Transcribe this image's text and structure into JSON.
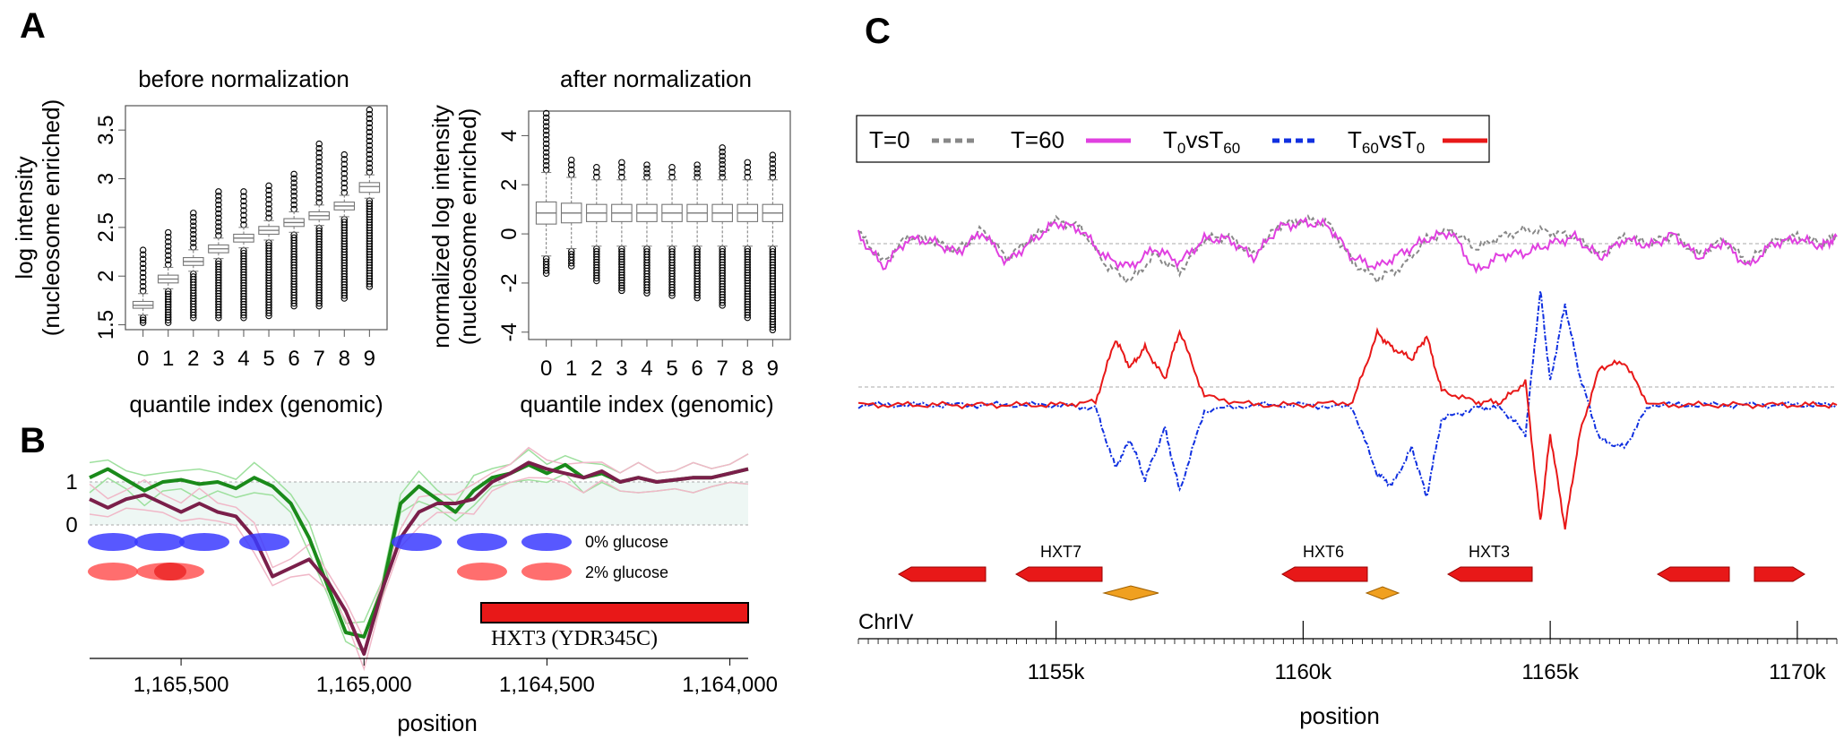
{
  "panels": {
    "a": "A",
    "b": "B",
    "c": "C"
  },
  "chart_data": [
    {
      "type": "box",
      "title": "before normalization",
      "xlabel": "quantile index (genomic)",
      "ylabel": [
        "log intensity",
        "(nucleosome enriched)"
      ],
      "categories": [
        "0",
        "1",
        "2",
        "3",
        "4",
        "5",
        "6",
        "7",
        "8",
        "9"
      ],
      "ylim": [
        1.45,
        3.75
      ],
      "yticks": [
        "1.5",
        "2",
        "2.5",
        "3",
        "3.5"
      ],
      "ytick_values": [
        1.5,
        2,
        2.5,
        3,
        3.5
      ],
      "medians": [
        1.7,
        1.97,
        2.15,
        2.28,
        2.39,
        2.47,
        2.55,
        2.62,
        2.72,
        2.92
      ],
      "q1": [
        1.67,
        1.93,
        2.11,
        2.24,
        2.35,
        2.43,
        2.51,
        2.58,
        2.68,
        2.86
      ],
      "q3": [
        1.74,
        2.01,
        2.19,
        2.32,
        2.43,
        2.51,
        2.59,
        2.66,
        2.76,
        2.96
      ],
      "whisker_low": [
        1.6,
        1.87,
        2.05,
        2.18,
        2.29,
        2.37,
        2.45,
        2.52,
        2.61,
        2.8
      ],
      "whisker_high": [
        1.82,
        2.09,
        2.27,
        2.39,
        2.5,
        2.57,
        2.66,
        2.73,
        2.83,
        3.04
      ],
      "outlier_low": [
        1.55,
        1.55,
        1.6,
        1.6,
        1.6,
        1.62,
        1.72,
        1.72,
        1.8,
        1.92
      ],
      "outlier_high": [
        2.24,
        2.42,
        2.62,
        2.84,
        2.84,
        2.9,
        3.02,
        3.33,
        3.22,
        3.68
      ]
    },
    {
      "type": "box",
      "title": "after normalization",
      "xlabel": "quantile index (genomic)",
      "ylabel": [
        "normalized log intensity",
        "(nucleosome enriched)"
      ],
      "categories": [
        "0",
        "1",
        "2",
        "3",
        "4",
        "5",
        "6",
        "7",
        "8",
        "9"
      ],
      "ylim": [
        -4.3,
        5.0
      ],
      "yticks": [
        "-4",
        "-2",
        "0",
        "2",
        "4"
      ],
      "ytick_values": [
        -4,
        -2,
        0,
        2,
        4
      ],
      "medians": [
        0.85,
        0.85,
        0.85,
        0.85,
        0.85,
        0.85,
        0.85,
        0.85,
        0.85,
        0.85
      ],
      "q1": [
        0.4,
        0.45,
        0.5,
        0.5,
        0.5,
        0.5,
        0.5,
        0.5,
        0.5,
        0.5
      ],
      "q3": [
        1.3,
        1.25,
        1.2,
        1.2,
        1.2,
        1.2,
        1.2,
        1.2,
        1.2,
        1.2
      ],
      "whisker_low": [
        -0.9,
        -0.6,
        -0.5,
        -0.5,
        -0.5,
        -0.5,
        -0.5,
        -0.5,
        -0.5,
        -0.5
      ],
      "whisker_high": [
        2.5,
        2.3,
        2.2,
        2.2,
        2.2,
        2.2,
        2.2,
        2.2,
        2.2,
        2.2
      ],
      "outlier_low": [
        -1.5,
        -1.2,
        -1.8,
        -2.2,
        -2.3,
        -2.4,
        -2.5,
        -2.8,
        -3.3,
        -3.8
      ],
      "outlier_high": [
        4.8,
        2.9,
        2.6,
        2.8,
        2.7,
        2.6,
        2.7,
        3.4,
        2.8,
        3.1
      ]
    },
    {
      "type": "line",
      "xlabel": "position",
      "xticks": [
        "1,165,500",
        "1,165,000",
        "1,164,500",
        "1,164,000"
      ],
      "xtick_values": [
        1165500,
        1165000,
        1164500,
        1164000
      ],
      "xlim": [
        1165750,
        1163950
      ],
      "yticks": [
        "1",
        "0"
      ],
      "ytick_values": [
        1,
        0
      ],
      "ylim": [
        -3.2,
        1.65
      ],
      "series": [
        {
          "color": "#1a8a1a",
          "x": [
            1165750,
            1165700,
            1165650,
            1165600,
            1165550,
            1165500,
            1165450,
            1165400,
            1165350,
            1165300,
            1165250,
            1165200,
            1165150,
            1165100,
            1165050,
            1165000,
            1164950,
            1164900,
            1164850,
            1164800,
            1164750,
            1164700,
            1164650,
            1164600,
            1164550,
            1164500,
            1164450,
            1164400,
            1164350,
            1164300,
            1164250,
            1164200,
            1164150,
            1164100,
            1164050,
            1164000,
            1163950
          ],
          "y": [
            1.1,
            1.3,
            1.05,
            0.8,
            1.0,
            1.05,
            0.95,
            1.0,
            0.85,
            1.1,
            0.9,
            0.5,
            -0.3,
            -1.4,
            -2.5,
            -2.6,
            -1.5,
            0.5,
            0.9,
            0.6,
            0.3,
            0.8,
            1.1,
            1.2,
            1.4,
            1.2,
            1.4,
            1.1,
            1.2,
            1.0,
            1.1,
            1.0,
            1.05,
            1.1,
            1.1,
            1.2,
            1.3
          ]
        },
        {
          "color": "#7a1f4a",
          "x": [
            1165750,
            1165700,
            1165650,
            1165600,
            1165550,
            1165500,
            1165450,
            1165400,
            1165350,
            1165300,
            1165250,
            1165200,
            1165150,
            1165100,
            1165050,
            1165000,
            1164950,
            1164900,
            1164850,
            1164800,
            1164750,
            1164700,
            1164650,
            1164600,
            1164550,
            1164500,
            1164450,
            1164400,
            1164350,
            1164300,
            1164250,
            1164200,
            1164150,
            1164100,
            1164050,
            1164000,
            1163950
          ],
          "y": [
            0.6,
            0.4,
            0.6,
            0.7,
            0.5,
            0.3,
            0.5,
            0.3,
            0.2,
            -0.3,
            -1.2,
            -1.0,
            -0.8,
            -1.3,
            -2.0,
            -3.0,
            -1.5,
            -0.3,
            0.3,
            0.5,
            0.5,
            0.6,
            1.0,
            1.2,
            1.45,
            1.3,
            1.2,
            1.1,
            1.25,
            1.0,
            1.1,
            1.0,
            1.05,
            1.1,
            1.1,
            1.2,
            1.3
          ]
        }
      ],
      "legend": [
        "0% glucose",
        "2% glucose"
      ],
      "gene_label": "HXT3 (YDR345C)"
    },
    {
      "type": "line",
      "xlabel": "position",
      "xticks": [
        "1155k",
        "1160k",
        "1165k",
        "1170k"
      ],
      "xtick_values": [
        1155000,
        1160000,
        1165000,
        1170000
      ],
      "xlim": [
        1151000,
        1170800
      ],
      "legend": [
        "T=0",
        "T=60",
        "T0vsT60",
        "T60vsT0"
      ],
      "chromosome": "ChrIV",
      "genes": [
        "HXT7",
        "HXT6",
        "HXT3"
      ],
      "series": [
        {
          "name": "T=0",
          "color": "#888888",
          "x": [
            1151000,
            1151500,
            1152000,
            1152500,
            1153000,
            1153500,
            1154000,
            1154500,
            1155000,
            1155500,
            1156000,
            1156500,
            1157000,
            1157500,
            1158000,
            1158500,
            1159000,
            1159500,
            1160000,
            1160500,
            1161000,
            1161500,
            1162000,
            1162500,
            1163000,
            1163500,
            1164000,
            1164500,
            1165000,
            1165500,
            1166000,
            1166500,
            1167000,
            1167500,
            1168000,
            1168500,
            1169000,
            1169500,
            1170000,
            1170500,
            1170800
          ],
          "y": [
            0.5,
            -0.8,
            0.3,
            0.1,
            -0.3,
            0.6,
            -0.6,
            0.2,
            1.0,
            0.7,
            -0.9,
            -1.6,
            -0.5,
            -1.2,
            0.2,
            0.3,
            -0.5,
            0.8,
            1.0,
            0.9,
            -0.8,
            -1.5,
            -1.0,
            0.2,
            0.6,
            -0.2,
            0.3,
            0.6,
            0.5,
            0.3,
            -0.5,
            0.3,
            0.0,
            0.4,
            -0.5,
            0.2,
            -0.8,
            0.1,
            0.3,
            0.0,
            0.4
          ]
        },
        {
          "name": "T=60",
          "color": "#e040e0",
          "x": [
            1151000,
            1151500,
            1152000,
            1152500,
            1153000,
            1153500,
            1154000,
            1154500,
            1155000,
            1155500,
            1156000,
            1156500,
            1157000,
            1157500,
            1158000,
            1158500,
            1159000,
            1159500,
            1160000,
            1160500,
            1161000,
            1161500,
            1162000,
            1162500,
            1163000,
            1163500,
            1164000,
            1164500,
            1165000,
            1165500,
            1166000,
            1166500,
            1167000,
            1167500,
            1168000,
            1168500,
            1169000,
            1169500,
            1170000,
            1170500,
            1170800
          ],
          "y": [
            0.4,
            -1.0,
            0.2,
            0.1,
            -0.4,
            0.5,
            -0.8,
            0.1,
            0.9,
            0.6,
            -0.6,
            -1.0,
            -0.2,
            -0.8,
            0.2,
            0.2,
            -0.6,
            0.7,
            0.9,
            0.8,
            -0.6,
            -1.0,
            -0.4,
            0.2,
            0.5,
            -1.2,
            -0.5,
            -0.4,
            0.0,
            0.3,
            -0.6,
            0.2,
            -0.1,
            0.4,
            -0.6,
            0.1,
            -1.0,
            0.0,
            0.2,
            -0.1,
            0.3
          ]
        },
        {
          "name": "T0vsT60",
          "color": "#1030e0",
          "x": [
            1151000,
            1152000,
            1153000,
            1154000,
            1155000,
            1155800,
            1156200,
            1156500,
            1156800,
            1157200,
            1157500,
            1158000,
            1159000,
            1160000,
            1161000,
            1161500,
            1161800,
            1162200,
            1162500,
            1162800,
            1163500,
            1164000,
            1164500,
            1164800,
            1165000,
            1165300,
            1165600,
            1166000,
            1166500,
            1167000,
            1168000,
            1169000,
            1170000,
            1170800
          ],
          "y": [
            0,
            0,
            0,
            0,
            0,
            -0.1,
            -2.2,
            -1.2,
            -2.6,
            -0.8,
            -3.0,
            -0.2,
            0,
            0,
            -0.1,
            -2.4,
            -2.8,
            -1.5,
            -3.2,
            -0.5,
            -0.1,
            -0.1,
            -1.0,
            4.0,
            0.8,
            3.5,
            1.0,
            -1.2,
            -1.5,
            0,
            0,
            0,
            0,
            0
          ]
        },
        {
          "name": "T60vsT0",
          "color": "#e81818",
          "x": [
            1151000,
            1152000,
            1153000,
            1154000,
            1155000,
            1155800,
            1156200,
            1156500,
            1156800,
            1157200,
            1157500,
            1158000,
            1159000,
            1160000,
            1161000,
            1161500,
            1161800,
            1162200,
            1162500,
            1162800,
            1163500,
            1164000,
            1164500,
            1164800,
            1165000,
            1165300,
            1165600,
            1166000,
            1166500,
            1167000,
            1168000,
            1169000,
            1170000,
            1170800
          ],
          "y": [
            0,
            0,
            0,
            0,
            0,
            0.1,
            2.3,
            1.3,
            2.0,
            0.9,
            2.6,
            0.3,
            0,
            0,
            0.1,
            2.5,
            2.0,
            1.6,
            2.4,
            0.5,
            0.1,
            0.1,
            0.8,
            -4.1,
            -1.0,
            -4.3,
            -1.0,
            1.3,
            1.5,
            0,
            0,
            0,
            0,
            0
          ]
        }
      ]
    }
  ]
}
